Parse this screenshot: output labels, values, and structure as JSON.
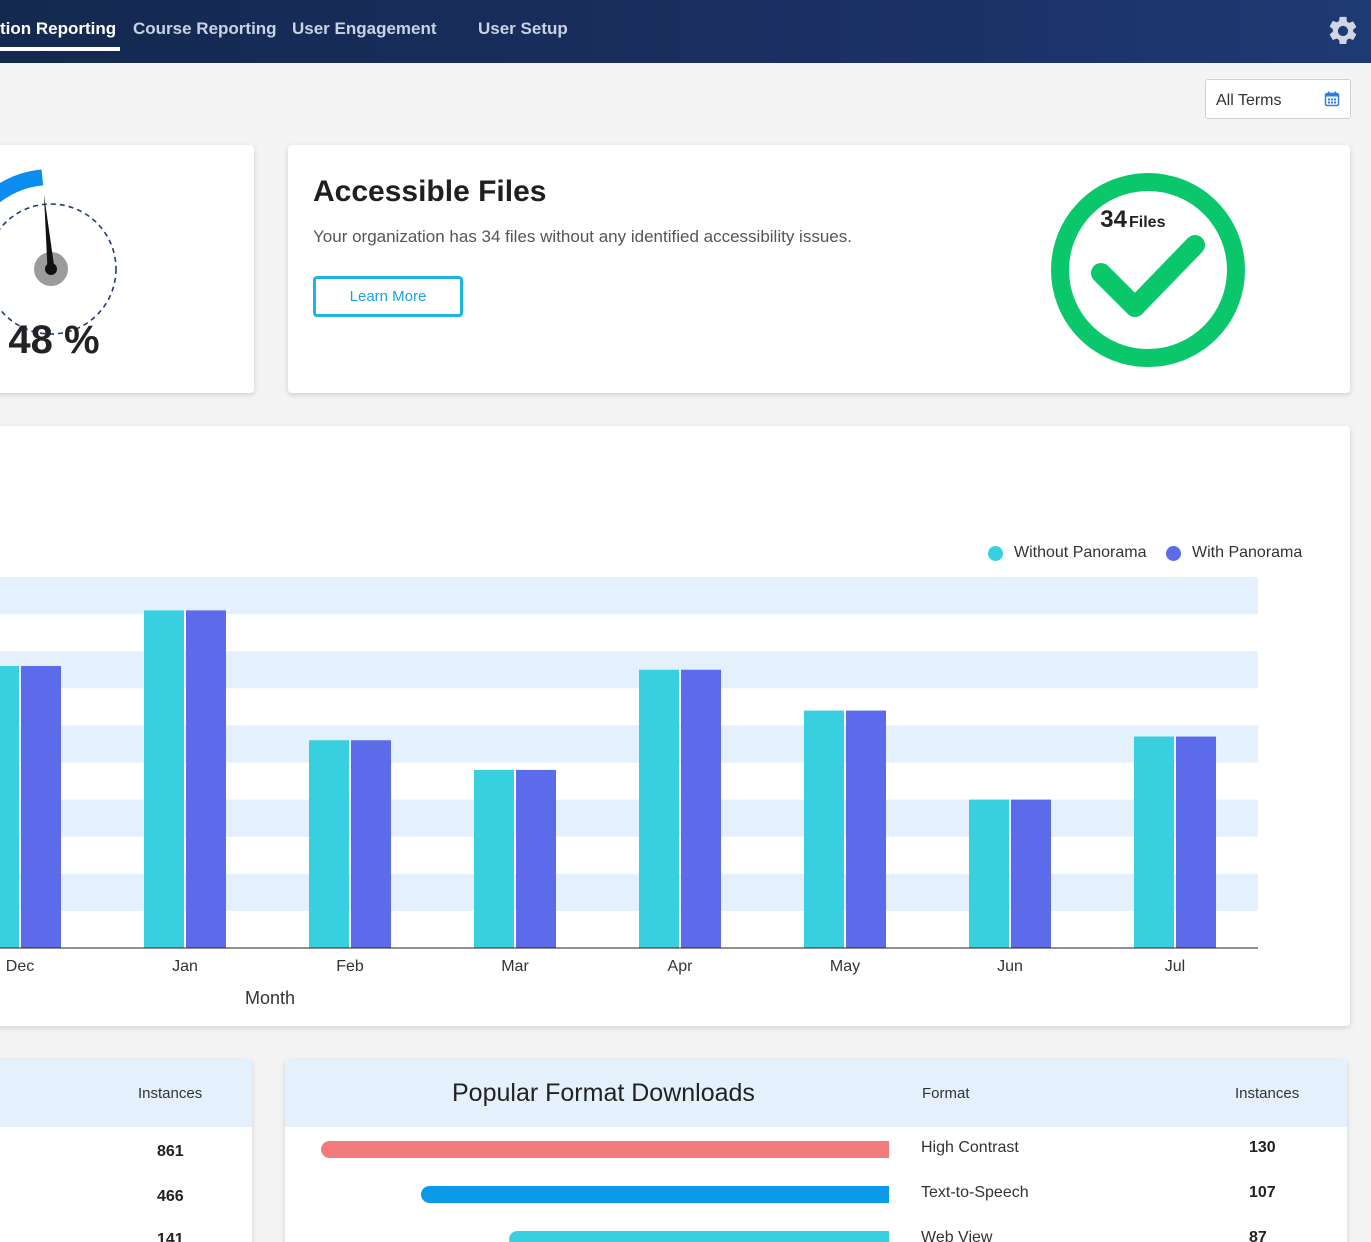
{
  "nav": {
    "items": [
      {
        "label": "tion Reporting",
        "active": true
      },
      {
        "label": "Course Reporting",
        "active": false
      },
      {
        "label": "User Engagement",
        "active": false
      },
      {
        "label": "User Setup",
        "active": false
      }
    ],
    "settings_icon": "gear-icon"
  },
  "term_filter": {
    "label": "All Terms",
    "icon": "calendar-icon"
  },
  "gauge": {
    "value_text": "48 %",
    "value": 48,
    "color": "#0a8cf0"
  },
  "accessible_files": {
    "title": "Accessible Files",
    "description": "Your organization has 34 files without any identified accessibility issues.",
    "button_label": "Learn More",
    "badge_count": "34",
    "badge_unit": "Files",
    "badge_color": "#0ac76b"
  },
  "chart_data": {
    "type": "bar",
    "categories": [
      "Dec",
      "Jan",
      "Feb",
      "Mar",
      "Apr",
      "May",
      "Jun",
      "Jul"
    ],
    "series": [
      {
        "name": "Without Panorama",
        "color": "#38cfe0",
        "values": [
          7.6,
          9.1,
          5.6,
          4.8,
          7.5,
          6.4,
          4.0,
          5.7
        ]
      },
      {
        "name": "With Panorama",
        "color": "#5b6bea",
        "values": [
          7.6,
          9.1,
          5.6,
          4.8,
          7.5,
          6.4,
          4.0,
          5.7
        ]
      }
    ],
    "xlabel": "Month",
    "ylabel": "",
    "ylim": [
      0,
      10
    ],
    "grid": "horizontal-bands",
    "legend": "top-right"
  },
  "left_table": {
    "header_instances": "Instances",
    "rows": [
      "861",
      "466",
      "141"
    ]
  },
  "popular_formats": {
    "title": "Popular Format Downloads",
    "header_format": "Format",
    "header_instances": "Instances",
    "rows": [
      {
        "format": "High Contrast",
        "instances": "130",
        "value": 130,
        "color": "#f47b7b"
      },
      {
        "format": "Text-to-Speech",
        "instances": "107",
        "value": 107,
        "color": "#0a9ae8"
      },
      {
        "format": "Web View",
        "instances": "87",
        "value": 87,
        "color": "#38cfe0"
      }
    ]
  }
}
